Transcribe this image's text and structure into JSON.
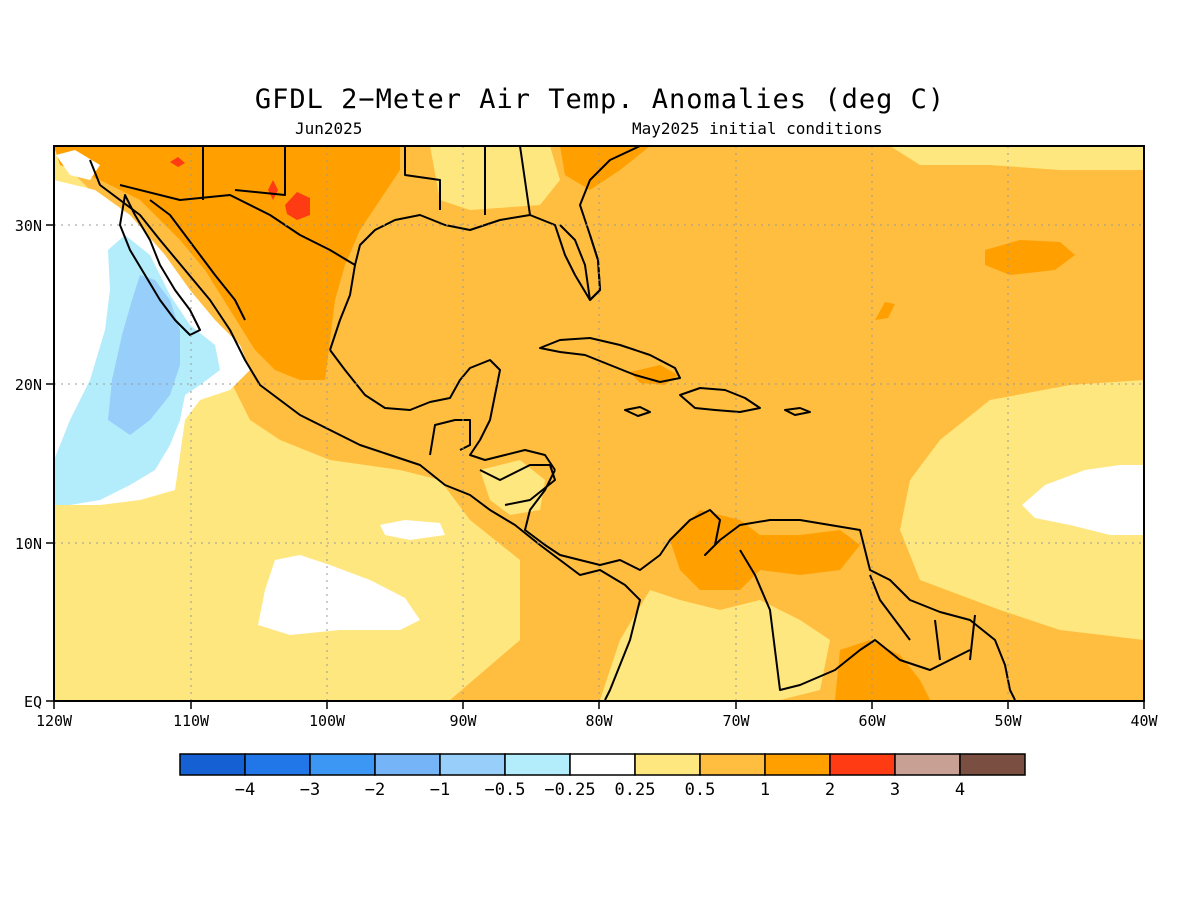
{
  "title": "GFDL 2−Meter Air Temp. Anomalies (deg C)",
  "subtitle_left": "Jun2025",
  "subtitle_right": "May2025 initial conditions",
  "axes": {
    "x_ticks": [
      "120W",
      "110W",
      "100W",
      "90W",
      "80W",
      "70W",
      "60W",
      "50W",
      "40W"
    ],
    "y_ticks": [
      "EQ",
      "10N",
      "20N",
      "30N"
    ]
  },
  "colorbar": {
    "colors": [
      "#1560d2",
      "#2176e8",
      "#3c96f4",
      "#76b4f8",
      "#98cefa",
      "#b3ecfb",
      "#ffffff",
      "#ffe77f",
      "#ffbe3f",
      "#ff9f00",
      "#ff3b14",
      "#c8a094",
      "#7a4f42"
    ],
    "labels": [
      "−4",
      "−3",
      "−2",
      "−1",
      "−0.5",
      "−0.25",
      "0.25",
      "0.5",
      "1",
      "2",
      "3",
      "4"
    ]
  },
  "chart_data": {
    "type": "heatmap",
    "title": "GFDL 2-Meter Air Temp. Anomalies (deg C)",
    "subtitle": [
      "Jun2025",
      "May2025 initial conditions"
    ],
    "region": {
      "lon_range": [
        "120W",
        "40W"
      ],
      "lat_range": [
        "EQ",
        "35N"
      ]
    },
    "grid": true,
    "bins": [
      -4,
      -3,
      -2,
      -1,
      -0.5,
      -0.25,
      0.25,
      0.5,
      1,
      2,
      3,
      4
    ],
    "dominant_anomaly": "0.5 to 1",
    "features": [
      {
        "area": "Gulf of Mexico and Caribbean",
        "range": "0.5 to 1"
      },
      {
        "area": "Northern Mexico and SW United States",
        "range": "1 to 2"
      },
      {
        "area": "Isolated spots over northern Mexico",
        "range": "2 to 3"
      },
      {
        "area": "Eastern Pacific off Baja California",
        "range": "-1 to -0.25"
      },
      {
        "area": "Eastern Pacific near 10N",
        "range": "-0.25 to 0.25"
      },
      {
        "area": "Central Atlantic near 12N",
        "range": "-0.25 to 0.25"
      },
      {
        "area": "Northern South America (Venezuela)",
        "range": "1 to 2"
      }
    ]
  }
}
